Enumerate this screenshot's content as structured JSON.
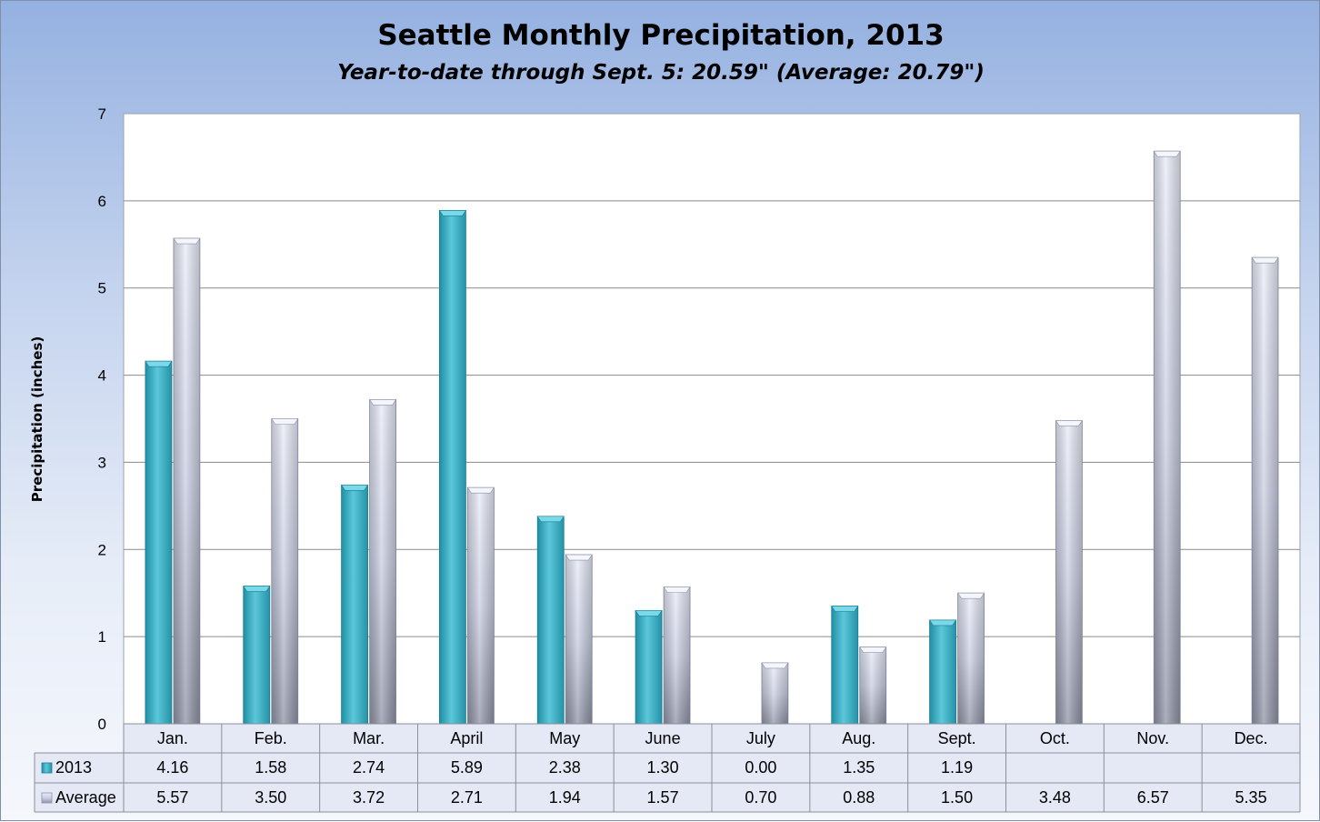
{
  "chart_data": {
    "type": "bar",
    "title": "Seattle Monthly Precipitation, 2013",
    "subtitle": "Year-to-date through Sept. 5: 20.59\" (Average: 20.79\")",
    "ylabel": "Precipitation (inches)",
    "xlabel": "",
    "ylim": [
      0,
      7
    ],
    "yticks": [
      0,
      1,
      2,
      3,
      4,
      5,
      6,
      7
    ],
    "grid": true,
    "legend": "data-table-left",
    "categories": [
      "Jan.",
      "Feb.",
      "Mar.",
      "April",
      "May",
      "June",
      "July",
      "Aug.",
      "Sept.",
      "Oct.",
      "Nov.",
      "Dec."
    ],
    "series": [
      {
        "name": "2013",
        "color": "#3fb3c8",
        "values": [
          4.16,
          1.58,
          2.74,
          5.89,
          2.38,
          1.3,
          0.0,
          1.35,
          1.19,
          null,
          null,
          null
        ],
        "labels": [
          "4.16",
          "1.58",
          "2.74",
          "5.89",
          "2.38",
          "1.30",
          "0.00",
          "1.35",
          "1.19",
          "",
          "",
          ""
        ]
      },
      {
        "name": "Average",
        "color": "#c9cfe2",
        "values": [
          5.57,
          3.5,
          3.72,
          2.71,
          1.94,
          1.57,
          0.7,
          0.88,
          1.5,
          3.48,
          6.57,
          5.35
        ],
        "labels": [
          "5.57",
          "3.50",
          "3.72",
          "2.71",
          "1.94",
          "1.57",
          "0.70",
          "0.88",
          "1.50",
          "3.48",
          "6.57",
          "5.35"
        ]
      }
    ]
  }
}
